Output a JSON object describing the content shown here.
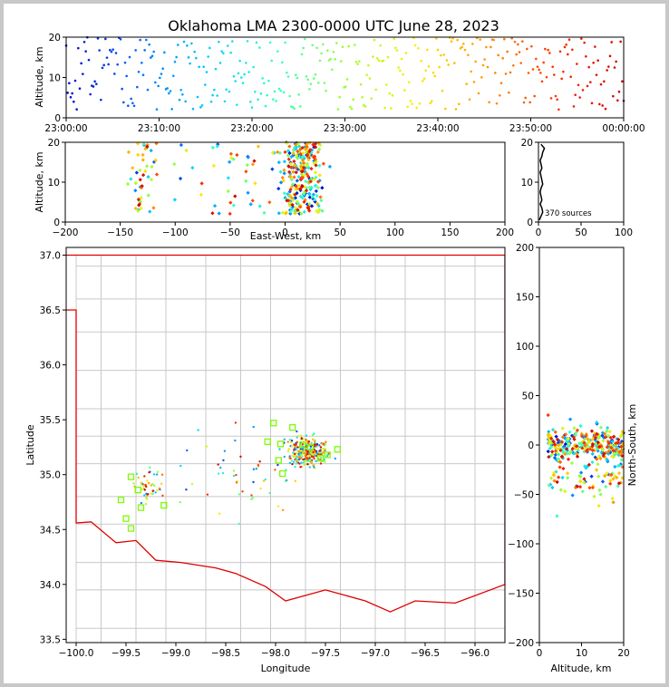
{
  "figure": {
    "title": "Oklahoma LMA 2300-0000 UTC June 28, 2023",
    "source_count_label": "370 sources"
  },
  "colors": {
    "border": "#e00000",
    "county_lines": "#c8c8c8",
    "station_marker": "#7cfc00",
    "time_colormap": [
      "#0000cc",
      "#0066ff",
      "#00ccff",
      "#33ffcc",
      "#99ff33",
      "#ffee00",
      "#ff9900",
      "#ff3300",
      "#cc0000"
    ]
  },
  "chart_data": [
    {
      "id": "alt_time",
      "type": "scatter",
      "title": "",
      "xlabel": "",
      "ylabel": "Altitude, km",
      "xlim": [
        "23:00:00",
        "00:00:00"
      ],
      "xticks": [
        "23:00:00",
        "23:10:00",
        "23:20:00",
        "23:30:00",
        "23:40:00",
        "23:50:00",
        "00:00:00"
      ],
      "ylim": [
        0,
        20
      ],
      "yticks": [
        "0",
        "10",
        "20"
      ],
      "note": "points colored by time (blue to red)"
    },
    {
      "id": "alt_ew",
      "type": "scatter",
      "title": "",
      "xlabel": "East-West, km",
      "ylabel": "Altitude, km",
      "xlim": [
        -200,
        200
      ],
      "xticks": [
        "−200",
        "−150",
        "−100",
        "−50",
        "0",
        "50",
        "100",
        "150",
        "200"
      ],
      "ylim": [
        0,
        20
      ],
      "yticks": [
        "0",
        "10",
        "20"
      ]
    },
    {
      "id": "alt_histogram",
      "type": "line",
      "title": "",
      "xlabel": "",
      "ylabel": "",
      "xlim": [
        0,
        100
      ],
      "xticks": [
        "0",
        "50",
        "100"
      ],
      "ylim": [
        0,
        20
      ],
      "yticks": [
        "0",
        "10",
        "20"
      ],
      "annotation": "370 sources",
      "x": [
        1,
        3,
        5,
        4,
        2,
        4,
        3,
        2,
        3,
        5,
        4,
        3,
        2,
        4,
        3,
        2,
        4,
        5,
        7,
        3
      ],
      "y": [
        0.5,
        1.5,
        2.5,
        3.5,
        4.5,
        5.5,
        6.5,
        7.5,
        8.5,
        9.5,
        10.5,
        11.5,
        12.5,
        13.5,
        14.5,
        15.5,
        16.5,
        17.5,
        18.5,
        19.5
      ]
    },
    {
      "id": "plan_view",
      "type": "scatter",
      "title": "",
      "xlabel": "Longitude",
      "ylabel": "Latitude",
      "xlim": [
        -100.1,
        -95.7
      ],
      "xticks": [
        "−100.0",
        "−99.5",
        "−99.0",
        "−98.5",
        "−98.0",
        "−97.5",
        "−97.0",
        "−96.5",
        "−96.0"
      ],
      "ylim": [
        33.47,
        37.07
      ],
      "yticks": [
        "33.5",
        "34.0",
        "34.5",
        "35.0",
        "35.5",
        "36.0",
        "36.5",
        "37.0"
      ],
      "stations": [
        [
          -98.02,
          35.47
        ],
        [
          -97.83,
          35.43
        ],
        [
          -98.08,
          35.3
        ],
        [
          -97.95,
          35.28
        ],
        [
          -97.73,
          35.27
        ],
        [
          -97.65,
          35.25
        ],
        [
          -97.97,
          35.13
        ],
        [
          -97.93,
          35.01
        ],
        [
          -97.55,
          35.15
        ],
        [
          -97.48,
          35.18
        ],
        [
          -97.38,
          35.23
        ],
        [
          -99.45,
          34.98
        ],
        [
          -99.38,
          34.86
        ],
        [
          -99.55,
          34.77
        ],
        [
          -99.35,
          34.7
        ],
        [
          -99.12,
          34.72
        ],
        [
          -99.5,
          34.6
        ],
        [
          -99.45,
          34.51
        ]
      ]
    },
    {
      "id": "alt_ns",
      "type": "scatter",
      "title": "",
      "xlabel": "Altitude, km",
      "ylabel": "North-South, km",
      "xlim": [
        0,
        20
      ],
      "xticks": [
        "0",
        "10",
        "20"
      ],
      "ylim": [
        -200,
        200
      ],
      "yticks": [
        "−200",
        "−150",
        "−100",
        "−50",
        "0",
        "50",
        "100",
        "150",
        "200"
      ]
    }
  ]
}
